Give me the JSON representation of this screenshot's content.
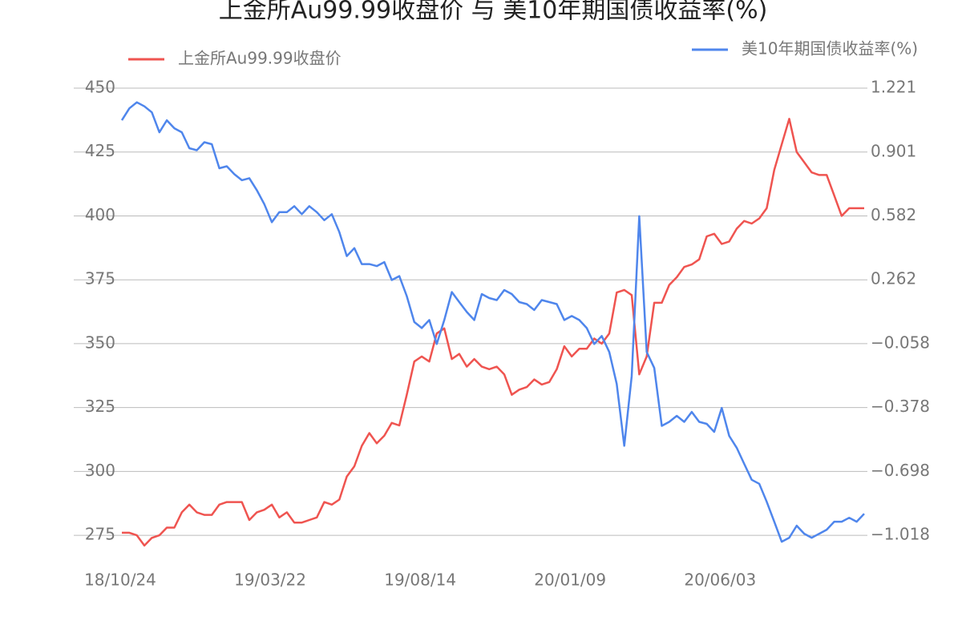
{
  "chart_data": {
    "type": "line",
    "title": "上金所Au99.99收盘价 与 美10年期国债收益率(%)",
    "categories": [
      "18/10/24",
      null,
      null,
      null,
      null,
      null,
      null,
      null,
      null,
      null,
      null,
      null,
      null,
      null,
      null,
      null,
      null,
      null,
      null,
      null,
      "19/03/22",
      null,
      null,
      null,
      null,
      null,
      null,
      null,
      null,
      null,
      null,
      null,
      null,
      null,
      null,
      null,
      null,
      null,
      null,
      null,
      "19/08/14",
      null,
      null,
      null,
      null,
      null,
      null,
      null,
      null,
      null,
      null,
      null,
      null,
      null,
      null,
      null,
      null,
      null,
      null,
      null,
      "20/01/09",
      null,
      null,
      null,
      null,
      null,
      null,
      null,
      null,
      null,
      null,
      null,
      null,
      null,
      null,
      null,
      null,
      null,
      null,
      null,
      "20/06/03",
      null,
      null,
      null,
      null,
      null,
      null,
      null,
      null,
      null,
      null,
      null,
      null,
      null,
      null,
      null,
      null,
      null,
      null,
      null
    ],
    "series": [
      {
        "name": "上金所Au99.99收盘价",
        "color": "#ef5450",
        "values": [
          276,
          276,
          275,
          271,
          274,
          275,
          278,
          278,
          284,
          287,
          284,
          283,
          283,
          287,
          288,
          288,
          288,
          281,
          284,
          285,
          287,
          282,
          284,
          280,
          280,
          281,
          282,
          288,
          287,
          289,
          298,
          302,
          310,
          315,
          311,
          314,
          319,
          318,
          330,
          343,
          345,
          343,
          354,
          356,
          344,
          346,
          341,
          344,
          341,
          340,
          341,
          338,
          330,
          332,
          333,
          336,
          334,
          335,
          340,
          349,
          345,
          348,
          348,
          352,
          350,
          354,
          370,
          371,
          369,
          338,
          345,
          366,
          366,
          373,
          376,
          380,
          381,
          383,
          392,
          393,
          389,
          390,
          395,
          398,
          397,
          399,
          403,
          418,
          428,
          438,
          425,
          421,
          417,
          416,
          416,
          408,
          400,
          403,
          403,
          403
        ]
      },
      {
        "name": "美10年期国债收益率(%)",
        "color": "#4f86ec",
        "axis": "y2",
        "values": [
          1.06,
          1.12,
          1.15,
          1.13,
          1.1,
          1.0,
          1.06,
          1.02,
          1.0,
          0.92,
          0.91,
          0.95,
          0.94,
          0.82,
          0.83,
          0.79,
          0.76,
          0.77,
          0.71,
          0.64,
          0.55,
          0.6,
          0.6,
          0.63,
          0.59,
          0.63,
          0.6,
          0.56,
          0.59,
          0.5,
          0.38,
          0.42,
          0.34,
          0.34,
          0.33,
          0.35,
          0.26,
          0.28,
          0.18,
          0.05,
          0.02,
          0.06,
          -0.06,
          0.06,
          0.2,
          0.15,
          0.1,
          0.06,
          0.19,
          0.17,
          0.16,
          0.21,
          0.19,
          0.15,
          0.14,
          0.11,
          0.16,
          0.15,
          0.14,
          0.06,
          0.08,
          0.06,
          0.02,
          -0.06,
          -0.02,
          -0.1,
          -0.26,
          -0.57,
          -0.22,
          0.58,
          -0.1,
          -0.18,
          -0.47,
          -0.45,
          -0.42,
          -0.45,
          -0.4,
          -0.45,
          -0.46,
          -0.5,
          -0.38,
          -0.52,
          -0.58,
          -0.66,
          -0.74,
          -0.76,
          -0.85,
          -0.95,
          -1.05,
          -1.03,
          -0.97,
          -1.01,
          -1.03,
          -1.01,
          -0.99,
          -0.95,
          -0.95,
          -0.93,
          -0.95,
          -0.91
        ]
      }
    ],
    "ylim": [
      265,
      450
    ],
    "yticks": [
      275,
      300,
      325,
      350,
      375,
      400,
      425,
      450
    ],
    "y2lim": [
      -1.146,
      1.221
    ],
    "y2ticks": [
      {
        "value": -1.018,
        "label": "−1.018"
      },
      {
        "value": -0.698,
        "label": "−0.698"
      },
      {
        "value": -0.378,
        "label": "−0.378"
      },
      {
        "value": -0.058,
        "label": "−0.058"
      },
      0.262,
      0.582,
      0.901,
      1.221
    ],
    "grid": true
  }
}
